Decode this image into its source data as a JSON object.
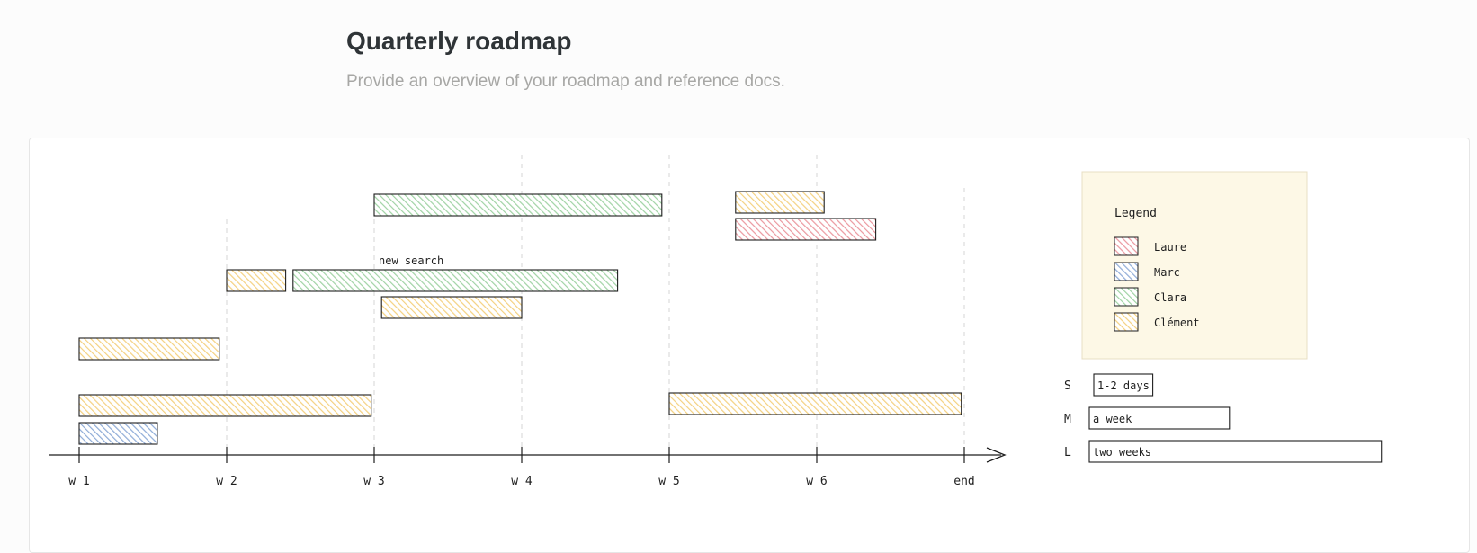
{
  "page": {
    "title": "Quarterly roadmap",
    "subtitle": "Provide an overview of your roadmap and reference docs."
  },
  "colors": {
    "Laure": "#e8868e",
    "Marc": "#7a9cd0",
    "Clara": "#8fcc94",
    "Clément": "#f2c96a",
    "legend_bg": "#fdf8e6",
    "stroke": "#1e1e1e"
  },
  "timeline": {
    "ticks": [
      "w 1",
      "w 2",
      "w 3",
      "w 4",
      "w 5",
      "w 6",
      "end"
    ]
  },
  "annotations": {
    "new_search": "new search"
  },
  "bars": [
    {
      "owner": "Clara",
      "start": 3.0,
      "end": 4.95
    },
    {
      "owner": "Clément",
      "start": 5.45,
      "end": 6.05
    },
    {
      "owner": "Laure",
      "start": 5.45,
      "end": 6.4
    },
    {
      "owner": "Clément",
      "start": 2.0,
      "end": 2.4
    },
    {
      "owner": "Clara",
      "start": 2.45,
      "end": 4.65,
      "label": "new search"
    },
    {
      "owner": "Clément",
      "start": 3.05,
      "end": 4.0
    },
    {
      "owner": "Clément",
      "start": 1.0,
      "end": 1.95
    },
    {
      "owner": "Clément",
      "start": 1.0,
      "end": 2.98
    },
    {
      "owner": "Clément",
      "start": 5.0,
      "end": 6.98
    },
    {
      "owner": "Marc",
      "start": 1.0,
      "end": 1.53
    }
  ],
  "legend": {
    "title": "Legend",
    "items": [
      {
        "name": "Laure",
        "color": "#e8868e"
      },
      {
        "name": "Marc",
        "color": "#7a9cd0"
      },
      {
        "name": "Clara",
        "color": "#8fcc94"
      },
      {
        "name": "Clément",
        "color": "#f2c96a"
      }
    ]
  },
  "sizes": [
    {
      "key": "S",
      "label": "1-2 days",
      "duration_weeks": 0.4
    },
    {
      "key": "M",
      "label": "a week",
      "duration_weeks": 0.95
    },
    {
      "key": "L",
      "label": "two weeks",
      "duration_weeks": 1.98
    }
  ]
}
